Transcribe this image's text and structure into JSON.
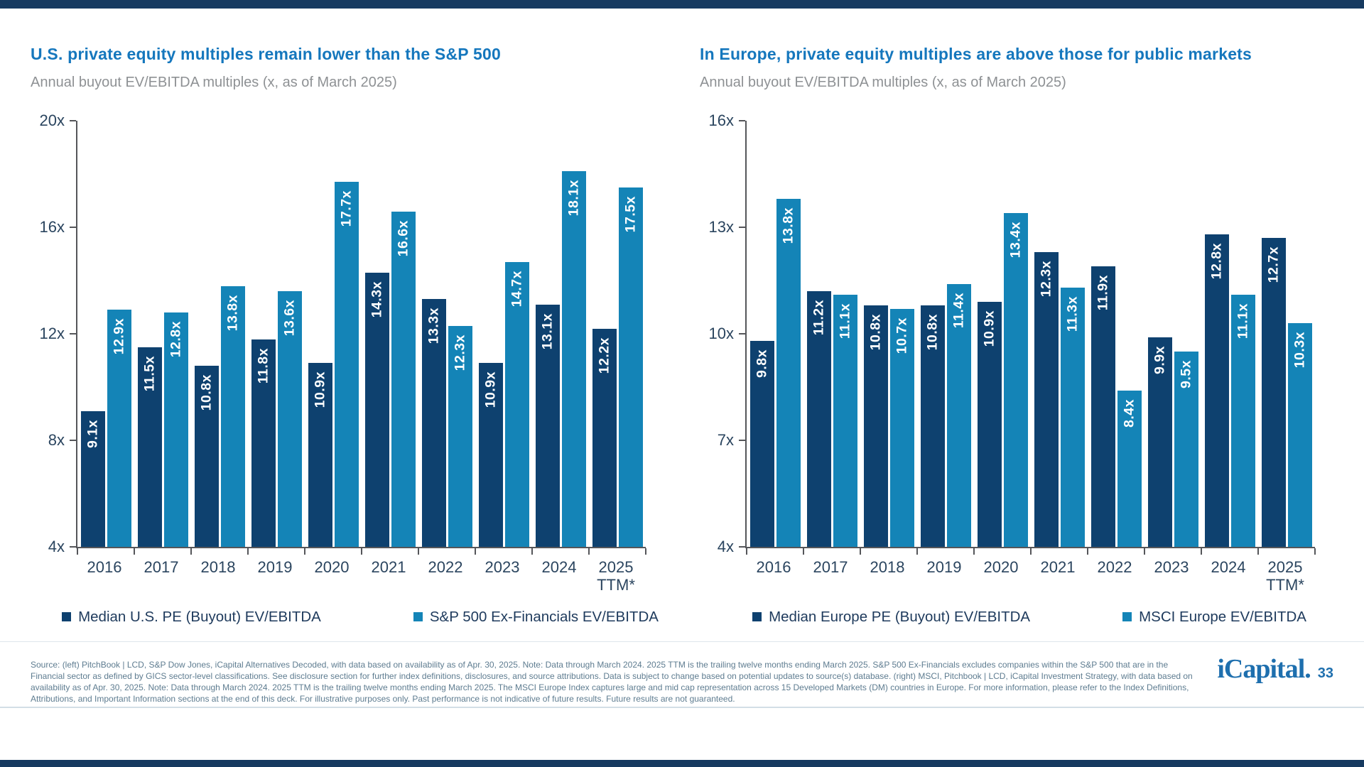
{
  "colors": {
    "pe_dark_blue": "#0E416F",
    "public_light_blue": "#1484B7",
    "title_blue": "#1577BD",
    "subtitle_gray": "#8E9194",
    "axis_text": "#2B455F",
    "footer_text": "#5E7C90",
    "logo_blue": "#1E6FAE",
    "template_bar_navy": "#163A60"
  },
  "chart_data": [
    {
      "type": "bar",
      "title": "U.S. private equity multiples remain lower than the S&P 500",
      "subtitle": "Annual buyout EV/EBITDA multiples (x, as of March 2025)",
      "y_axis": {
        "min": 4,
        "max": 20,
        "ticks": [
          "20x",
          "16x",
          "12x",
          "8x",
          "4x"
        ],
        "unit": "x"
      },
      "categories": [
        "2016",
        "2017",
        "2018",
        "2019",
        "2020",
        "2021",
        "2022",
        "2023",
        "2024",
        "2025\nTTM*"
      ],
      "series": [
        {
          "name": "Median U.S. PE (Buyout) EV/EBITDA",
          "color": "#0E416F",
          "values": [
            9.1,
            11.5,
            10.8,
            11.8,
            10.9,
            14.3,
            13.3,
            10.9,
            13.1,
            12.2
          ]
        },
        {
          "name": "S&P 500 Ex-Financials EV/EBITDA",
          "color": "#1484B7",
          "values": [
            12.9,
            12.8,
            13.8,
            13.6,
            17.7,
            16.6,
            12.3,
            14.7,
            18.1,
            17.5
          ]
        }
      ],
      "legend_position": "bottom",
      "grid": "off"
    },
    {
      "type": "bar",
      "title": "In Europe, private equity multiples are above those for public markets",
      "subtitle": "Annual buyout EV/EBITDA multiples (x, as of March 2025)",
      "y_axis": {
        "min": 4,
        "max": 16,
        "ticks": [
          "16x",
          "13x",
          "10x",
          "7x",
          "4x"
        ],
        "unit": "x"
      },
      "categories": [
        "2016",
        "2017",
        "2018",
        "2019",
        "2020",
        "2021",
        "2022",
        "2023",
        "2024",
        "2025\nTTM*"
      ],
      "series": [
        {
          "name": "Median Europe PE (Buyout) EV/EBITDA",
          "color": "#0E416F",
          "values": [
            9.8,
            11.2,
            10.8,
            10.8,
            10.9,
            12.3,
            11.9,
            9.9,
            12.8,
            12.7
          ]
        },
        {
          "name": "MSCI Europe EV/EBITDA",
          "color": "#1484B7",
          "values": [
            13.8,
            11.1,
            10.7,
            11.4,
            13.4,
            11.3,
            8.4,
            9.5,
            11.1,
            10.3
          ]
        }
      ],
      "legend_position": "bottom",
      "grid": "off"
    }
  ],
  "footer": {
    "source_text": "Source: (left) PitchBook | LCD, S&P Dow Jones, iCapital Alternatives Decoded, with data based on availability as of Apr. 30, 2025. Note: Data through March 2024. 2025 TTM is the trailing twelve months ending March 2025. S&P 500 Ex-Financials excludes companies within the S&P 500 that are in the Financial sector as defined by GICS sector-level classifications. See disclosure section for further index definitions, disclosures, and source attributions. Data is subject to change based on potential updates to source(s) database. (right) MSCI, Pitchbook | LCD, iCapital Investment Strategy, with data based on availability as of Apr. 30, 2025. Note: Data through March 2024. 2025 TTM is the trailing twelve months ending March 2025. The MSCI Europe Index captures large and mid cap representation across 15 Developed Markets (DM) countries in Europe. For more information, please refer to the Index Definitions, Attributions, and Important Information sections at the end of this deck. For illustrative purposes only. Past performance is not indicative of future results. Future results are not guaranteed.",
    "logo_text": "iCapital.",
    "page_number": "33"
  }
}
